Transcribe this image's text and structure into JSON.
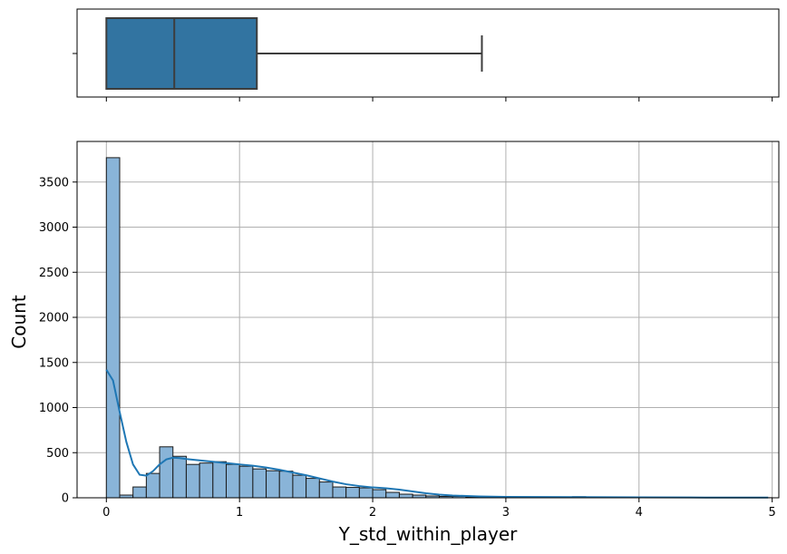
{
  "chart_data": [
    {
      "type": "boxplot",
      "variable": "Y_std_within_player",
      "stats": {
        "whisker_low": 0.0,
        "q1": 0.0,
        "median": 0.51,
        "q3": 1.13,
        "whisker_high": 2.82
      },
      "xlim": [
        -0.22,
        5.05
      ],
      "box_color": "#3274a1",
      "line_color": "#3d3d3d",
      "grid": false
    },
    {
      "type": "histogram",
      "title": "",
      "xlabel": "Y_std_within_player",
      "ylabel": "Count",
      "xlim": [
        -0.22,
        5.05
      ],
      "ylim": [
        0,
        3950
      ],
      "xticks": [
        0,
        1,
        2,
        3,
        4,
        5
      ],
      "yticks": [
        0,
        500,
        1000,
        1500,
        2000,
        2500,
        3000,
        3500
      ],
      "grid": true,
      "bin_width": 0.1,
      "bin_start": 0.0,
      "counts": [
        3770,
        30,
        120,
        270,
        565,
        460,
        370,
        385,
        400,
        370,
        350,
        320,
        300,
        295,
        250,
        215,
        175,
        120,
        115,
        110,
        90,
        60,
        40,
        30,
        20,
        15,
        15,
        10,
        10,
        8,
        6,
        5,
        5,
        4,
        4,
        12,
        4,
        3,
        3,
        3,
        2,
        2,
        2,
        2,
        2,
        1,
        1,
        1,
        1,
        1
      ],
      "kde": {
        "x": [
          0.0,
          0.05,
          0.1,
          0.15,
          0.2,
          0.25,
          0.3,
          0.35,
          0.4,
          0.45,
          0.5,
          0.55,
          0.6,
          0.7,
          0.8,
          0.9,
          1.0,
          1.1,
          1.2,
          1.3,
          1.4,
          1.5,
          1.6,
          1.7,
          1.8,
          1.9,
          2.0,
          2.1,
          2.2,
          2.3,
          2.4,
          2.5,
          2.6,
          2.8,
          3.0,
          3.5,
          4.0,
          4.5,
          4.97
        ],
        "y": [
          1420,
          1300,
          950,
          620,
          370,
          255,
          245,
          295,
          370,
          425,
          445,
          440,
          430,
          415,
          400,
          385,
          370,
          355,
          335,
          310,
          280,
          250,
          215,
          180,
          150,
          130,
          115,
          105,
          90,
          70,
          50,
          35,
          25,
          15,
          10,
          8,
          5,
          3,
          2
        ]
      },
      "bar_fill": "#89b4d8",
      "bar_edge": "#1a1a1a",
      "kde_color": "#1f77b4"
    }
  ]
}
